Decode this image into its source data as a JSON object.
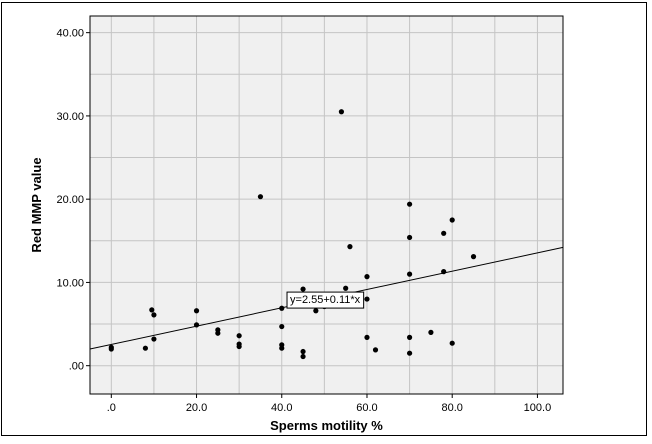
{
  "chart_data": {
    "type": "scatter",
    "title": "",
    "xlabel": "Sperms motility %",
    "ylabel": "Red MMP value",
    "xlim": [
      -5,
      106
    ],
    "ylim": [
      -3.4,
      42
    ],
    "x_ticks": [
      0,
      20,
      40,
      60,
      80,
      100
    ],
    "x_tick_labels": [
      ".0",
      "20.0",
      "40.0",
      "60.0",
      "80.0",
      "100.0"
    ],
    "y_ticks": [
      0,
      10,
      20,
      30,
      40
    ],
    "y_tick_labels": [
      ".00",
      "10.00",
      "20.00",
      "30.00",
      "40.00"
    ],
    "grid": true,
    "plot_background": "#f0f0f0",
    "point_color": "#000000",
    "points": [
      {
        "x": 0,
        "y": 2.0
      },
      {
        "x": 0,
        "y": 2.2
      },
      {
        "x": 8,
        "y": 2.1
      },
      {
        "x": 9.5,
        "y": 6.7
      },
      {
        "x": 10,
        "y": 6.1
      },
      {
        "x": 10,
        "y": 3.2
      },
      {
        "x": 20,
        "y": 6.6
      },
      {
        "x": 20,
        "y": 4.9
      },
      {
        "x": 25,
        "y": 4.3
      },
      {
        "x": 25,
        "y": 3.9
      },
      {
        "x": 30,
        "y": 3.6
      },
      {
        "x": 30,
        "y": 2.6
      },
      {
        "x": 30,
        "y": 2.3
      },
      {
        "x": 35,
        "y": 20.3
      },
      {
        "x": 40,
        "y": 6.9
      },
      {
        "x": 40,
        "y": 4.7
      },
      {
        "x": 40,
        "y": 2.5
      },
      {
        "x": 40,
        "y": 2.1
      },
      {
        "x": 45,
        "y": 9.2
      },
      {
        "x": 45,
        "y": 1.7
      },
      {
        "x": 45,
        "y": 1.1
      },
      {
        "x": 48,
        "y": 6.6
      },
      {
        "x": 50,
        "y": 7.1
      },
      {
        "x": 54,
        "y": 30.5
      },
      {
        "x": 55,
        "y": 9.3
      },
      {
        "x": 56,
        "y": 14.3
      },
      {
        "x": 60,
        "y": 10.7
      },
      {
        "x": 60,
        "y": 8.0
      },
      {
        "x": 60,
        "y": 3.4
      },
      {
        "x": 62,
        "y": 1.9
      },
      {
        "x": 70,
        "y": 19.4
      },
      {
        "x": 70,
        "y": 15.4
      },
      {
        "x": 70,
        "y": 11.0
      },
      {
        "x": 70,
        "y": 3.4
      },
      {
        "x": 70,
        "y": 1.5
      },
      {
        "x": 75,
        "y": 4.0
      },
      {
        "x": 78,
        "y": 15.9
      },
      {
        "x": 78,
        "y": 11.3
      },
      {
        "x": 80,
        "y": 17.5
      },
      {
        "x": 80,
        "y": 2.7
      },
      {
        "x": 85,
        "y": 13.1
      }
    ],
    "fit_line": {
      "intercept": 2.55,
      "slope": 0.11,
      "label": "y=2.55+0.11*x",
      "label_anchor": {
        "x": 41,
        "y": 8.0
      }
    }
  }
}
